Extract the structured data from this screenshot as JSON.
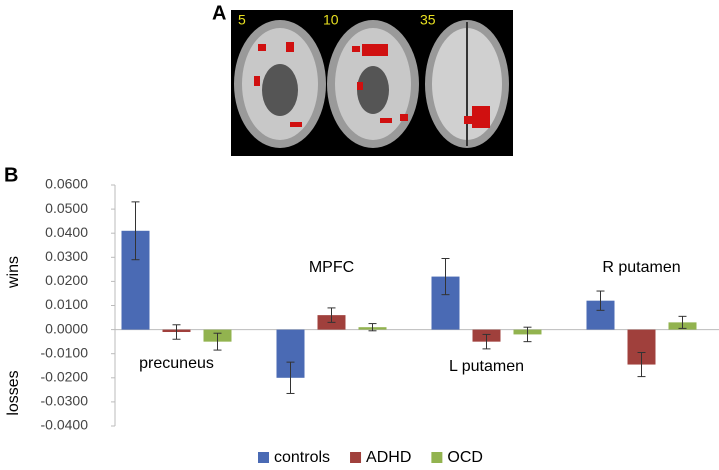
{
  "panel_labels": [
    "A",
    "B"
  ],
  "slice_labels": [
    "5",
    "10",
    "35"
  ],
  "chart_data": {
    "type": "bar",
    "y_label_upper": "wins",
    "y_label_lower": "losses",
    "categories": [
      "precuneus",
      "MPFC",
      "L putamen",
      "R putamen"
    ],
    "series": [
      {
        "name": "controls",
        "color": "#4a6ab4",
        "values": [
          0.041,
          -0.02,
          0.022,
          0.012
        ],
        "errors": [
          0.012,
          0.0065,
          0.0075,
          0.004
        ]
      },
      {
        "name": "ADHD",
        "color": "#a0403c",
        "values": [
          -0.001,
          0.006,
          -0.005,
          -0.0145
        ],
        "errors": [
          0.003,
          0.003,
          0.003,
          0.005
        ]
      },
      {
        "name": "OCD",
        "color": "#92b34f",
        "values": [
          -0.005,
          0.001,
          -0.002,
          0.003
        ],
        "errors": [
          0.0035,
          0.0015,
          0.003,
          0.0025
        ]
      }
    ],
    "ylim": [
      -0.04,
      0.06
    ],
    "yticks": [
      {
        "value": 0.06,
        "label": "0.0600"
      },
      {
        "value": 0.05,
        "label": "0.0500"
      },
      {
        "value": 0.04,
        "label": "0.0400"
      },
      {
        "value": 0.03,
        "label": "0.0300"
      },
      {
        "value": 0.02,
        "label": "0.0200"
      },
      {
        "value": 0.01,
        "label": "0.0100"
      },
      {
        "value": 0,
        "label": "0.0000"
      },
      {
        "value": -0.01,
        "label": "-0.0100"
      },
      {
        "value": -0.02,
        "label": "-0.0200"
      },
      {
        "value": -0.03,
        "label": "-0.0300"
      },
      {
        "value": -0.04,
        "label": "-0.0400"
      }
    ],
    "grid": false
  }
}
